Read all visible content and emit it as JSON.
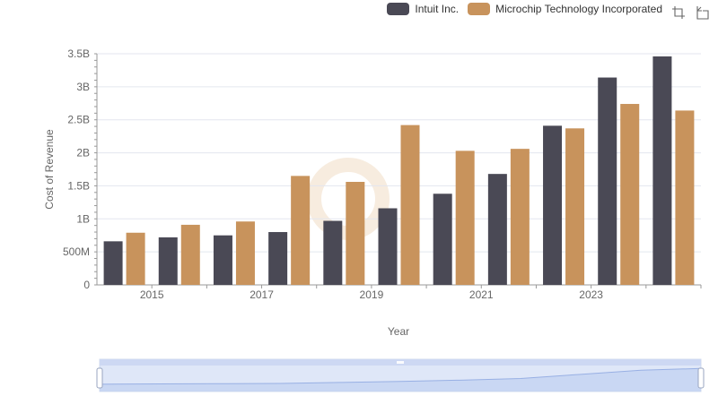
{
  "legend": {
    "items": [
      {
        "label": "Intuit Inc.",
        "color": "#4a4955"
      },
      {
        "label": "Microchip Technology Incorporated",
        "color": "#c8935c"
      }
    ]
  },
  "toolbox": {
    "icons": [
      "zoom-icon",
      "restore-icon"
    ]
  },
  "chart_data": {
    "type": "bar",
    "title": "",
    "xlabel": "Year",
    "ylabel": "Cost of Revenue",
    "categories": [
      "2014",
      "2015",
      "2016",
      "2017",
      "2018",
      "2019",
      "2020",
      "2021",
      "2022",
      "2023",
      "2024"
    ],
    "x_tick_labels": [
      "2015",
      "2017",
      "2019",
      "2021",
      "2023"
    ],
    "y_ticks": [
      0,
      500000000,
      1000000000,
      1500000000,
      2000000000,
      2500000000,
      3000000000,
      3500000000
    ],
    "y_tick_labels": [
      "0",
      "500M",
      "1B",
      "1.5B",
      "2B",
      "2.5B",
      "3B",
      "3.5B"
    ],
    "ylim": [
      0,
      3500000000
    ],
    "series": [
      {
        "name": "Intuit Inc.",
        "color": "#4a4955",
        "values": [
          660000000,
          720000000,
          750000000,
          800000000,
          970000000,
          1160000000,
          1380000000,
          1680000000,
          2410000000,
          3140000000,
          3460000000
        ]
      },
      {
        "name": "Microchip Technology Incorporated",
        "color": "#c8935c",
        "values": [
          790000000,
          910000000,
          960000000,
          1650000000,
          1560000000,
          2420000000,
          2030000000,
          2060000000,
          2370000000,
          2740000000,
          2640000000
        ]
      }
    ],
    "data_zoom": {
      "start_label": "",
      "end_label": ""
    }
  }
}
